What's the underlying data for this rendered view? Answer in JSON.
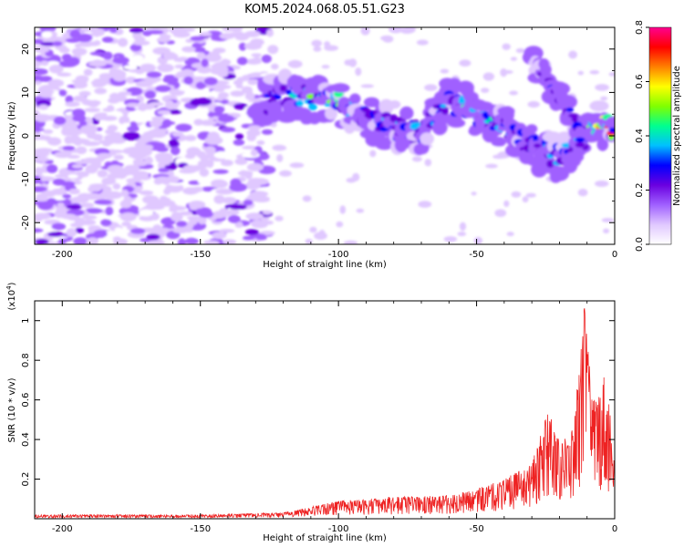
{
  "title": "KOM5.2024.068.05.51.G23",
  "chart_data": [
    {
      "type": "heatmap",
      "xlabel": "Height of straight line (km)",
      "ylabel": "Frequency (Hz)",
      "xlim": [
        -210,
        0
      ],
      "ylim": [
        -25,
        25
      ],
      "xticks": [
        -200,
        -150,
        -100,
        -50,
        0
      ],
      "yticks": [
        20,
        10,
        0,
        -10,
        -20
      ],
      "colorbar": {
        "label": "Normalized spectral amplitude",
        "range": [
          0,
          0.8
        ],
        "ticks": [
          0.0,
          0.2,
          0.4,
          0.6,
          0.8
        ],
        "colormap": [
          "#ffffff",
          "#e0c8ff",
          "#a060ff",
          "#6a00e0",
          "#0000ff",
          "#00c0ff",
          "#00ff90",
          "#80ff00",
          "#ffff00",
          "#ff8000",
          "#ff0000",
          "#ff0090"
        ]
      },
      "ridge": [
        {
          "x": -130,
          "y": 7,
          "amp": 0.15
        },
        {
          "x": -120,
          "y": 9,
          "amp": 0.35
        },
        {
          "x": -110,
          "y": 9,
          "amp": 0.45
        },
        {
          "x": -100,
          "y": 8,
          "amp": 0.45
        },
        {
          "x": -90,
          "y": 4,
          "amp": 0.35
        },
        {
          "x": -80,
          "y": 2,
          "amp": 0.3
        },
        {
          "x": -70,
          "y": 1,
          "amp": 0.35
        },
        {
          "x": -60,
          "y": 8,
          "amp": 0.4
        },
        {
          "x": -50,
          "y": 5,
          "amp": 0.4
        },
        {
          "x": -40,
          "y": 2,
          "amp": 0.35
        },
        {
          "x": -30,
          "y": -2,
          "amp": 0.35
        },
        {
          "x": -20,
          "y": -5,
          "amp": 0.35
        },
        {
          "x": -10,
          "y": 0,
          "amp": 0.4
        },
        {
          "x": -5,
          "y": 3,
          "amp": 0.7
        },
        {
          "x": 0,
          "y": 1,
          "amp": 0.6
        }
      ],
      "ridge_secondary": [
        {
          "x": -30,
          "y": 18,
          "amp": 0.15
        },
        {
          "x": -25,
          "y": 13,
          "amp": 0.2
        },
        {
          "x": -20,
          "y": 9,
          "amp": 0.25
        },
        {
          "x": -15,
          "y": 4,
          "amp": 0.3
        },
        {
          "x": -12,
          "y": -2,
          "amp": 0.3
        }
      ]
    },
    {
      "type": "line",
      "xlabel": "Height of straight line (km)",
      "ylabel": "SNR (10 * v/v)",
      "yscale_label": "(x10",
      "yscale_exp": "4",
      "unit_suffix": ")",
      "xlim": [
        -210,
        0
      ],
      "ylim": [
        0,
        1.1
      ],
      "xticks": [
        -200,
        -150,
        -100,
        -50,
        0
      ],
      "yticks": [
        0.2,
        0.4,
        0.6,
        0.8,
        1.0
      ],
      "series": [
        {
          "color": "#ee2222",
          "envelope": [
            {
              "x": -210,
              "y": 0.02
            },
            {
              "x": -150,
              "y": 0.02
            },
            {
              "x": -120,
              "y": 0.03
            },
            {
              "x": -110,
              "y": 0.06
            },
            {
              "x": -100,
              "y": 0.09
            },
            {
              "x": -80,
              "y": 0.11
            },
            {
              "x": -60,
              "y": 0.12
            },
            {
              "x": -50,
              "y": 0.15
            },
            {
              "x": -40,
              "y": 0.2
            },
            {
              "x": -30,
              "y": 0.28
            },
            {
              "x": -24,
              "y": 0.55
            },
            {
              "x": -20,
              "y": 0.4
            },
            {
              "x": -15,
              "y": 0.45
            },
            {
              "x": -11,
              "y": 1.07
            },
            {
              "x": -8,
              "y": 0.6
            },
            {
              "x": -4,
              "y": 0.75
            },
            {
              "x": 0,
              "y": 0.45
            }
          ]
        }
      ]
    }
  ]
}
